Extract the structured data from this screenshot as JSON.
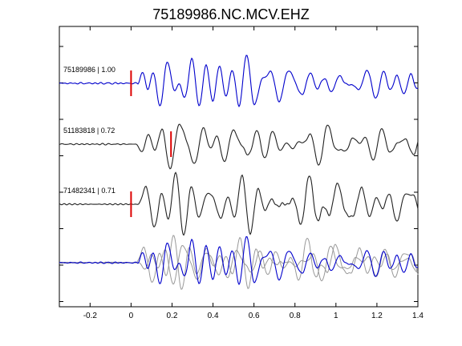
{
  "chart_data": {
    "type": "line",
    "title": "75189986.NC.MCV.EHZ",
    "xlabel": "",
    "ylabel": "",
    "xlim": [
      -0.35,
      1.4
    ],
    "x_ticks": [
      -0.2,
      0,
      0.2,
      0.4,
      0.6,
      0.8,
      1,
      1.2,
      1.4
    ],
    "x_tick_labels": [
      "-0.2",
      "0",
      "0.2",
      "0.4",
      "0.6",
      "0.8",
      "1",
      "1.2",
      "1.4"
    ],
    "grid": false,
    "colors": {
      "reference": "#0000cc",
      "trace": "#222222",
      "overlay_gray": "#999999",
      "pick_marker": "#dd0000"
    },
    "traces": [
      {
        "label": "75189986 | 1.00",
        "event_id": "75189986",
        "correlation": 1.0,
        "pick_time": 0.0,
        "color": "reference"
      },
      {
        "label": "51183818 | 0.72",
        "event_id": "51183818",
        "correlation": 0.72,
        "pick_time": 0.195,
        "color": "trace"
      },
      {
        "label": "71482341 | 0.71",
        "event_id": "71482341",
        "correlation": 0.71,
        "pick_time": 0.0,
        "color": "trace"
      },
      {
        "label": "",
        "event_id": "stack",
        "correlation": null,
        "pick_time": null,
        "color": "overlay"
      }
    ]
  }
}
